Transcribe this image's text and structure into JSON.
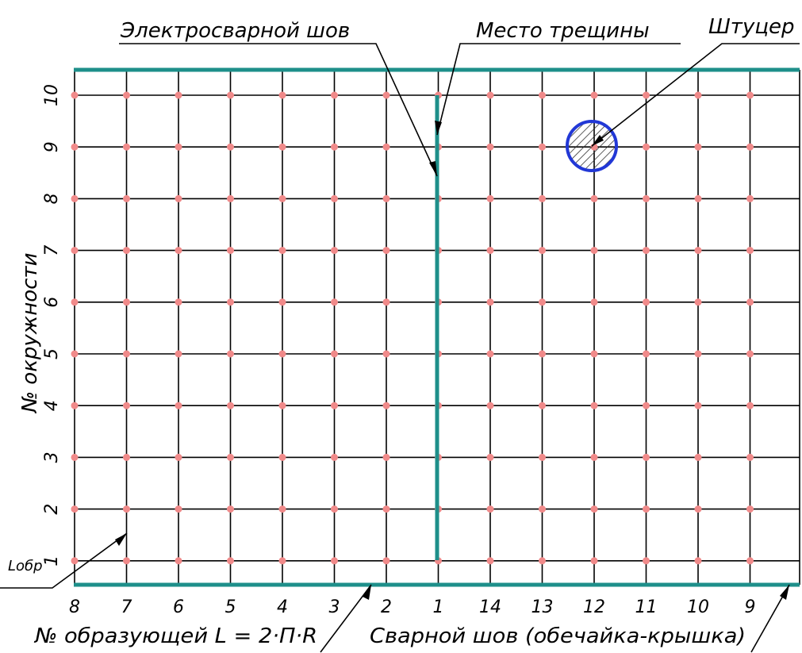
{
  "labels": {
    "electroweld": "Электросварной шов",
    "crack": "Место трещины",
    "fitting": "Штуцер",
    "circle_axis": "№ окружности",
    "generatrix": "№ образующей  L = 2·П·R",
    "seam": "Сварной шов (обечайка-крышка)",
    "l_obr": "Lобр"
  },
  "columns": [
    "8",
    "7",
    "6",
    "5",
    "4",
    "3",
    "2",
    "1",
    "14",
    "13",
    "12",
    "11",
    "10",
    "9"
  ],
  "rows": [
    "10",
    "9",
    "8",
    "7",
    "6",
    "5",
    "4",
    "3",
    "2",
    "1"
  ],
  "colors": {
    "grid": "#000000",
    "points": "#f08a8a",
    "bands": "#1e8f8a",
    "fitting": "#2238d6"
  }
}
